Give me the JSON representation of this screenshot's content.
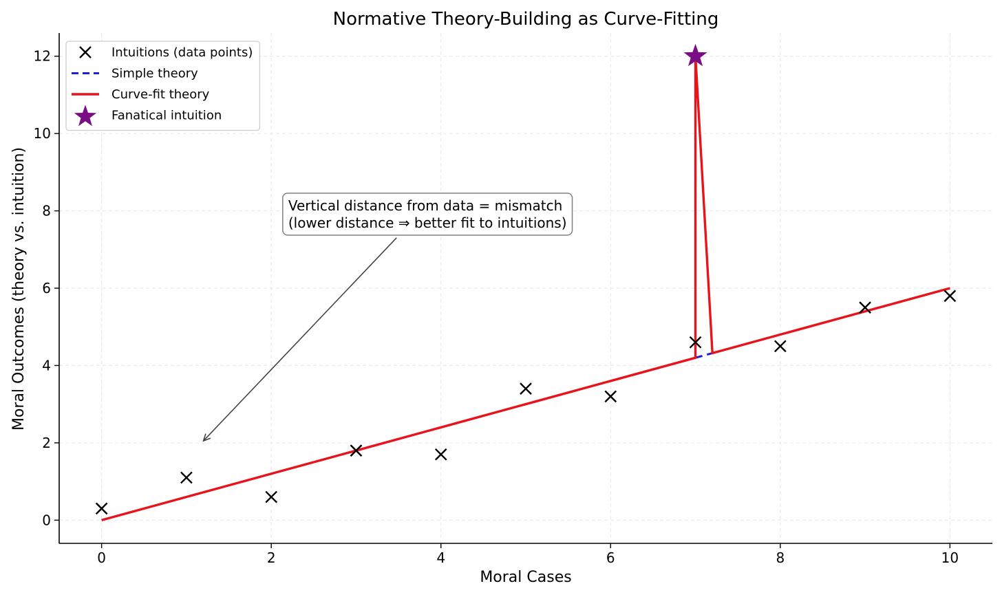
{
  "chart_data": {
    "type": "line",
    "title": "Normative Theory-Building as Curve-Fitting",
    "xlabel": "Moral Cases",
    "ylabel": "Moral Outcomes (theory vs. intuition)",
    "xlim": [
      -0.5,
      10.5
    ],
    "ylim": [
      -0.6,
      12.6
    ],
    "xticks": [
      0,
      2,
      4,
      6,
      8,
      10
    ],
    "yticks": [
      0,
      2,
      4,
      6,
      8,
      10,
      12
    ],
    "grid": true,
    "legend_location": "top-left",
    "series": [
      {
        "name": "Intuitions (data points)",
        "kind": "scatter",
        "marker": "x",
        "color": "#000000",
        "x": [
          0,
          1,
          2,
          3,
          4,
          5,
          6,
          7,
          8,
          9,
          10
        ],
        "y": [
          0.3,
          1.1,
          0.6,
          1.8,
          1.7,
          3.4,
          3.2,
          4.6,
          4.5,
          5.5,
          5.8
        ]
      },
      {
        "name": "Simple theory",
        "kind": "line",
        "style": "dashed",
        "color": "#1f1fd6",
        "x": [
          0,
          10
        ],
        "y": [
          0,
          6
        ]
      },
      {
        "name": "Curve-fit theory",
        "kind": "line",
        "style": "solid",
        "color": "#e8141a",
        "x": [
          0,
          7,
          7,
          7.2,
          10
        ],
        "y": [
          0,
          4.2,
          12,
          4.32,
          6
        ]
      },
      {
        "name": "Fanatical intuition",
        "kind": "scatter",
        "marker": "star",
        "color": "#7a0d85",
        "x": [
          7
        ],
        "y": [
          12
        ]
      }
    ],
    "annotation": {
      "lines": [
        "Vertical distance from data = mismatch",
        "(lower distance ⇒ better fit to intuitions)"
      ],
      "arrow_target": [
        1.2,
        2.05
      ],
      "text_anchor": [
        2.2,
        7.8
      ]
    }
  }
}
